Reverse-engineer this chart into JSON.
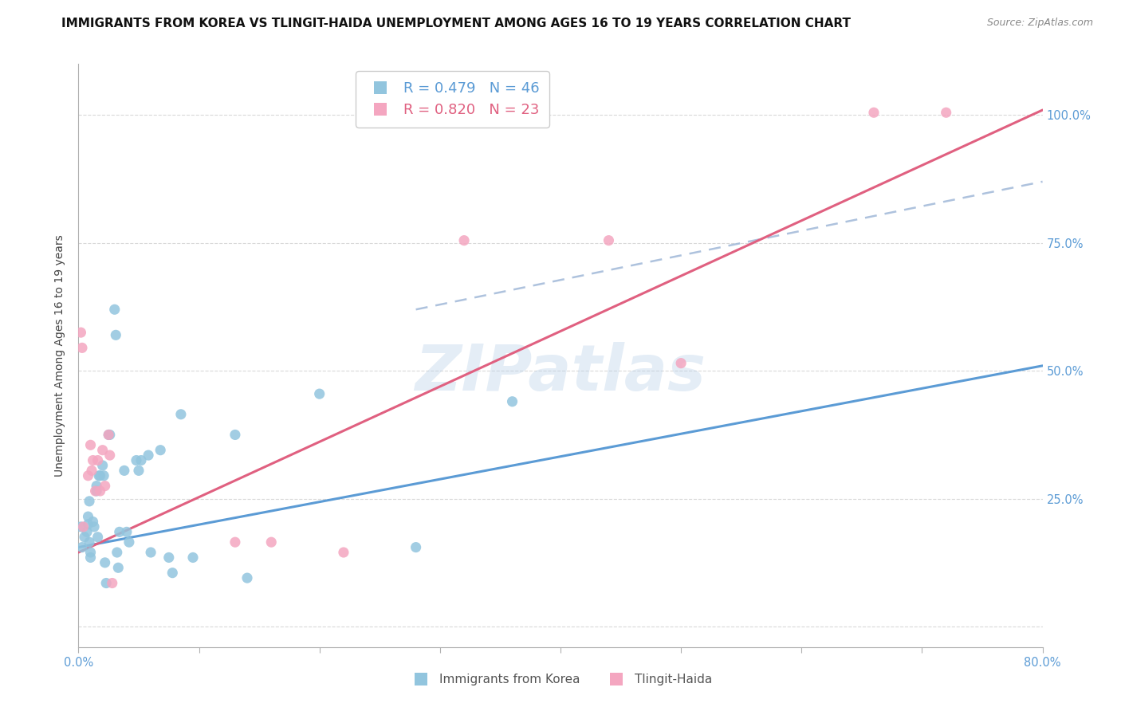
{
  "title": "IMMIGRANTS FROM KOREA VS TLINGIT-HAIDA UNEMPLOYMENT AMONG AGES 16 TO 19 YEARS CORRELATION CHART",
  "source": "Source: ZipAtlas.com",
  "ylabel": "Unemployment Among Ages 16 to 19 years",
  "x_min": 0.0,
  "x_max": 0.8,
  "y_min": -0.04,
  "y_max": 1.1,
  "yticks": [
    0.0,
    0.25,
    0.5,
    0.75,
    1.0
  ],
  "ytick_labels": [
    "",
    "25.0%",
    "50.0%",
    "75.0%",
    "100.0%"
  ],
  "xticks": [
    0.0,
    0.1,
    0.2,
    0.3,
    0.4,
    0.5,
    0.6,
    0.7,
    0.8
  ],
  "xtick_labels": [
    "0.0%",
    "",
    "",
    "",
    "",
    "",
    "",
    "",
    "80.0%"
  ],
  "legend_r1": "R = 0.479   N = 46",
  "legend_r2": "R = 0.820   N = 23",
  "legend_label1": "Immigrants from Korea",
  "legend_label2": "Tlingit-Haida",
  "blue_color": "#92c5de",
  "pink_color": "#f4a6c0",
  "blue_line_color": "#5b9bd5",
  "pink_line_color": "#e06080",
  "blue_scatter": [
    [
      0.002,
      0.195
    ],
    [
      0.003,
      0.155
    ],
    [
      0.005,
      0.175
    ],
    [
      0.007,
      0.185
    ],
    [
      0.008,
      0.2
    ],
    [
      0.008,
      0.215
    ],
    [
      0.009,
      0.245
    ],
    [
      0.009,
      0.165
    ],
    [
      0.01,
      0.145
    ],
    [
      0.01,
      0.135
    ],
    [
      0.012,
      0.205
    ],
    [
      0.013,
      0.195
    ],
    [
      0.015,
      0.275
    ],
    [
      0.015,
      0.265
    ],
    [
      0.016,
      0.175
    ],
    [
      0.017,
      0.295
    ],
    [
      0.018,
      0.295
    ],
    [
      0.02,
      0.315
    ],
    [
      0.021,
      0.295
    ],
    [
      0.022,
      0.125
    ],
    [
      0.023,
      0.085
    ],
    [
      0.025,
      0.375
    ],
    [
      0.026,
      0.375
    ],
    [
      0.03,
      0.62
    ],
    [
      0.031,
      0.57
    ],
    [
      0.032,
      0.145
    ],
    [
      0.033,
      0.115
    ],
    [
      0.034,
      0.185
    ],
    [
      0.038,
      0.305
    ],
    [
      0.04,
      0.185
    ],
    [
      0.042,
      0.165
    ],
    [
      0.048,
      0.325
    ],
    [
      0.05,
      0.305
    ],
    [
      0.052,
      0.325
    ],
    [
      0.058,
      0.335
    ],
    [
      0.06,
      0.145
    ],
    [
      0.068,
      0.345
    ],
    [
      0.075,
      0.135
    ],
    [
      0.078,
      0.105
    ],
    [
      0.085,
      0.415
    ],
    [
      0.095,
      0.135
    ],
    [
      0.13,
      0.375
    ],
    [
      0.14,
      0.095
    ],
    [
      0.2,
      0.455
    ],
    [
      0.28,
      0.155
    ],
    [
      0.36,
      0.44
    ]
  ],
  "pink_scatter": [
    [
      0.002,
      0.575
    ],
    [
      0.003,
      0.545
    ],
    [
      0.004,
      0.195
    ],
    [
      0.008,
      0.295
    ],
    [
      0.01,
      0.355
    ],
    [
      0.011,
      0.305
    ],
    [
      0.012,
      0.325
    ],
    [
      0.014,
      0.265
    ],
    [
      0.016,
      0.325
    ],
    [
      0.018,
      0.265
    ],
    [
      0.02,
      0.345
    ],
    [
      0.022,
      0.275
    ],
    [
      0.025,
      0.375
    ],
    [
      0.026,
      0.335
    ],
    [
      0.028,
      0.085
    ],
    [
      0.13,
      0.165
    ],
    [
      0.16,
      0.165
    ],
    [
      0.22,
      0.145
    ],
    [
      0.32,
      0.755
    ],
    [
      0.44,
      0.755
    ],
    [
      0.5,
      0.515
    ],
    [
      0.66,
      1.005
    ],
    [
      0.72,
      1.005
    ]
  ],
  "blue_line": {
    "x0": 0.0,
    "y0": 0.155,
    "x1": 0.8,
    "y1": 0.51
  },
  "pink_line": {
    "x0": 0.0,
    "y0": 0.145,
    "x1": 0.8,
    "y1": 1.01
  },
  "blue_dashed_line": {
    "x0": 0.28,
    "y0": 0.62,
    "x1": 0.8,
    "y1": 0.87
  },
  "watermark": "ZIPatlas",
  "bg_color": "#ffffff",
  "grid_color": "#d0d0d0",
  "axis_color": "#b0b0b0",
  "tick_color": "#5b9bd5",
  "title_fontsize": 11,
  "source_fontsize": 9,
  "label_fontsize": 10,
  "tick_fontsize": 10.5
}
